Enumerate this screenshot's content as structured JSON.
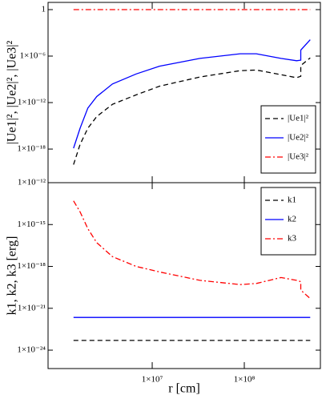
{
  "chart_data": [
    {
      "type": "line",
      "ylabel": "|Ue1|², |Ue2|², |Ue3|²",
      "yscale": "log",
      "xscale": "log",
      "xlim": [
        740000,
        670000000
      ],
      "ylim": [
        4.6e-23,
        8.5
      ],
      "yticks": [
        1,
        {
          "value": 1e-06,
          "label": "1×10⁻⁶"
        },
        {
          "value": 1e-12,
          "label": "1×10⁻¹²"
        },
        {
          "value": 1e-18,
          "label": "1×10⁻¹⁸"
        }
      ],
      "legend": "lower right",
      "x": [
        1400000,
        1650000,
        2000000,
        2500000,
        3700000,
        6700000,
        12000000,
        33000000,
        90000000,
        135000000,
        250000000,
        370000000,
        410000000,
        410000000,
        520000000
      ],
      "series": [
        {
          "name": "|Ue1|²",
          "color": "#000000",
          "dash": "dashed",
          "values": [
            1e-20,
            4e-18,
            5e-16,
            1.6e-14,
            6e-13,
            1e-11,
            1.3e-10,
            2e-09,
            1.3e-08,
            1.6e-08,
            4e-09,
            1.6e-09,
            2.5e-09,
            6e-08,
            6e-07
          ]
        },
        {
          "name": "|Ue2|²",
          "color": "#0000ff",
          "dash": "solid",
          "values": [
            1.3e-18,
            5e-16,
            2e-13,
            6e-12,
            2.5e-10,
            5e-09,
            5e-08,
            5e-07,
            2e-06,
            2e-06,
            5e-07,
            2.5e-07,
            3e-07,
            6e-06,
            0.00013
          ]
        },
        {
          "name": "|Ue3|²",
          "color": "#ff0000",
          "dash": "dashdot",
          "values": [
            1,
            1,
            1,
            1,
            1,
            1,
            1,
            1,
            1,
            1,
            1,
            1,
            1,
            1,
            1
          ]
        }
      ]
    },
    {
      "type": "line",
      "ylabel": "k1, k2, k3 [erg]",
      "xlabel": "r [cm]",
      "yscale": "log",
      "xscale": "log",
      "xlim": [
        740000,
        670000000
      ],
      "ylim": [
        4.8e-26,
        1e-12
      ],
      "xticks": [
        {
          "value": 10000000,
          "label": "1×10⁷"
        },
        {
          "value": 100000000,
          "label": "1×10⁸"
        }
      ],
      "yticks": [
        {
          "value": 1e-12,
          "label": "1×10⁻¹²"
        },
        {
          "value": 1e-15,
          "label": "1×10⁻¹⁵"
        },
        {
          "value": 1e-18,
          "label": "1×10⁻¹⁸"
        },
        {
          "value": 1e-21,
          "label": "1×10⁻²¹"
        },
        {
          "value": 1e-24,
          "label": "1×10⁻²⁴"
        }
      ],
      "legend": "upper right",
      "x": [
        1400000,
        1650000,
        2000000,
        2500000,
        3700000,
        6700000,
        12000000,
        33000000,
        90000000,
        135000000,
        250000000,
        370000000,
        410000000,
        410000000,
        520000000
      ],
      "series": [
        {
          "name": "k1",
          "color": "#000000",
          "dash": "dashed",
          "values": [
            5e-24,
            5e-24,
            5e-24,
            5e-24,
            5e-24,
            5e-24,
            5e-24,
            5e-24,
            5e-24,
            5e-24,
            5e-24,
            5e-24,
            5e-24,
            5e-24,
            5e-24
          ]
        },
        {
          "name": "k2",
          "color": "#0000ff",
          "dash": "solid",
          "values": [
            2.2e-22,
            2.2e-22,
            2.2e-22,
            2.2e-22,
            2.2e-22,
            2.2e-22,
            2.2e-22,
            2.2e-22,
            2.2e-22,
            2.2e-22,
            2.2e-22,
            2.2e-22,
            2.2e-22,
            2.2e-22,
            2.2e-22
          ]
        },
        {
          "name": "k3",
          "color": "#ff0000",
          "dash": "dashdot",
          "values": [
            5e-14,
            8e-15,
            5e-16,
            5e-17,
            5e-18,
            1e-18,
            4e-19,
            1e-19,
            5e-20,
            6e-20,
            1.6e-19,
            1e-19,
            8e-20,
            2e-20,
            5e-21
          ]
        }
      ]
    }
  ]
}
